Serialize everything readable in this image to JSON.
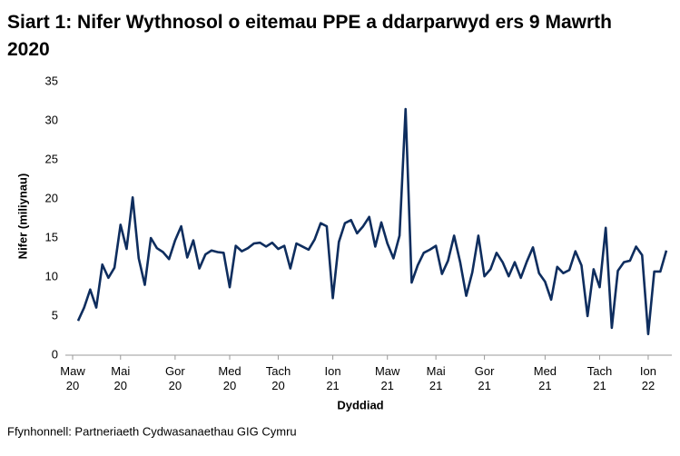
{
  "chart_data": {
    "type": "line",
    "title": "Siart 1: Nifer Wythnosol o eitemau PPE a ddarparwyd ers 9 Mawrth 2020",
    "y_label": "Nifer (miliynau)",
    "x_label": "Dyddiad",
    "source": "Ffynhonnell: Partneriaeth Cydwasanaethau GIG Cymru",
    "categories": [
      "Maw 20",
      null,
      null,
      null,
      null,
      null,
      null,
      "Mai 20",
      null,
      null,
      null,
      null,
      null,
      null,
      null,
      null,
      "Gor 20",
      null,
      null,
      null,
      null,
      null,
      null,
      null,
      null,
      "Med 20",
      null,
      null,
      null,
      null,
      null,
      null,
      null,
      "Tach 20",
      null,
      null,
      null,
      null,
      null,
      null,
      null,
      null,
      "Ion 21",
      null,
      null,
      null,
      null,
      null,
      null,
      null,
      null,
      "Maw 21",
      null,
      null,
      null,
      null,
      null,
      null,
      null,
      "Mai 21",
      null,
      null,
      null,
      null,
      null,
      null,
      null,
      "Gor 21",
      null,
      null,
      null,
      null,
      null,
      null,
      null,
      null,
      null,
      "Med 21",
      null,
      null,
      null,
      null,
      null,
      null,
      null,
      null,
      "Tach 21",
      null,
      null,
      null,
      null,
      null,
      null,
      null,
      "Ion 22",
      null,
      null,
      null
    ],
    "series": [
      {
        "name": "Nifer",
        "color": "#0e2d5e",
        "values": [
          4.4,
          6.1,
          8.4,
          6.1,
          11.6,
          9.9,
          11.2,
          16.7,
          13.6,
          20.2,
          12.4,
          9.0,
          15.0,
          13.7,
          13.2,
          12.3,
          14.7,
          16.5,
          12.5,
          14.7,
          11.1,
          12.9,
          13.4,
          13.2,
          13.1,
          8.7,
          14.0,
          13.3,
          13.7,
          14.3,
          14.4,
          13.9,
          14.4,
          13.6,
          14.0,
          11.1,
          14.3,
          13.9,
          13.5,
          14.8,
          16.9,
          16.5,
          7.3,
          14.5,
          16.9,
          17.3,
          15.6,
          16.5,
          17.7,
          13.9,
          17.0,
          14.3,
          12.4,
          15.3,
          31.5,
          9.3,
          11.5,
          13.1,
          13.5,
          14.0,
          10.4,
          12.1,
          15.3,
          11.9,
          7.6,
          10.6,
          15.3,
          10.1,
          11.0,
          13.1,
          11.9,
          10.1,
          11.9,
          9.9,
          12.0,
          13.8,
          10.5,
          9.4,
          7.1,
          11.3,
          10.5,
          10.9,
          13.3,
          11.5,
          5.0,
          11.0,
          8.7,
          16.3,
          3.5,
          10.8,
          11.9,
          12.1,
          13.9,
          12.8,
          2.7,
          10.7,
          10.7,
          13.4
        ]
      }
    ],
    "ylim": [
      0,
      35
    ],
    "yticks": [
      0,
      5,
      10,
      15,
      20,
      25,
      30,
      35
    ],
    "grid": false,
    "legend": false
  }
}
